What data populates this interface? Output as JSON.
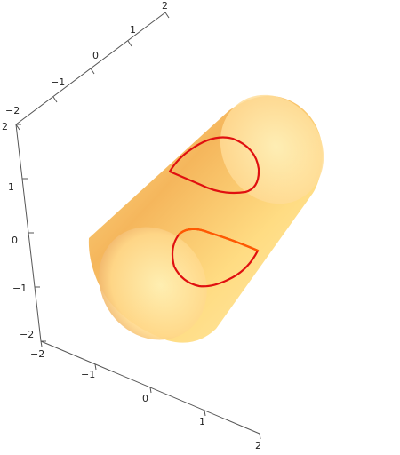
{
  "axes": {
    "top_axis": {
      "ticks": [
        "2",
        "1",
        "0",
        "−1",
        "−2"
      ]
    },
    "left_axis": {
      "ticks": [
        "2",
        "1",
        "0",
        "−1",
        "−2"
      ]
    },
    "bottom_axis": {
      "ticks": [
        "−2",
        "−1",
        "0",
        "1",
        "2"
      ]
    }
  },
  "colors": {
    "axis": "#555555",
    "cylinder_light": "#fff0a8",
    "cylinder_mid": "#ffcc66",
    "cylinder_dark": "#e08a2a",
    "curve": "#e01010",
    "curve_inner": "#ff5a00"
  },
  "objects": {
    "surface": "cylinder",
    "curves": [
      "curve-loop-upper",
      "curve-loop-lower"
    ]
  }
}
